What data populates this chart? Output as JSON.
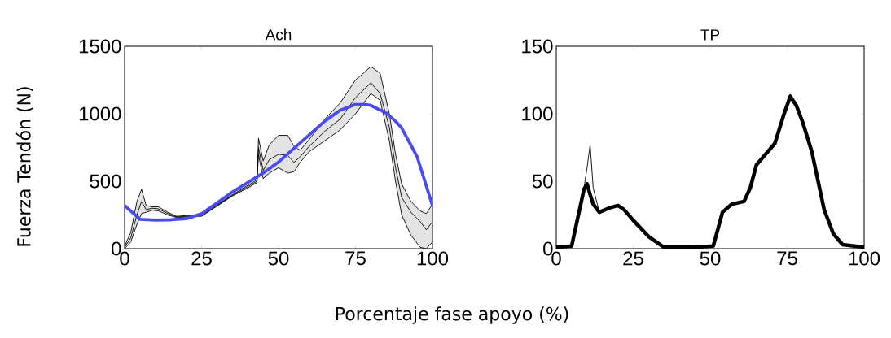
{
  "chart_data": [
    {
      "type": "line",
      "title": "Ach",
      "ylabel": "Fuerza Tendón (N)",
      "xlabel": "Porcentaje fase apoyo  (%)",
      "xlim": [
        0,
        100
      ],
      "ylim": [
        0,
        1500
      ],
      "xticks": [
        0,
        25,
        50,
        75,
        100
      ],
      "yticks": [
        0,
        500,
        1000,
        1500
      ],
      "grid": false,
      "legend": false,
      "series": [
        {
          "color": "#000000",
          "x": [
            0,
            2,
            4,
            5.5,
            7,
            9,
            11,
            14,
            17,
            20,
            25,
            30,
            35,
            40,
            43,
            43.5,
            45,
            47,
            50,
            53,
            55,
            57,
            60,
            65,
            70,
            75,
            80,
            83,
            86,
            88,
            90,
            93,
            96,
            98,
            100
          ],
          "values": [
            10,
            80,
            250,
            350,
            290,
            300,
            295,
            260,
            235,
            240,
            245,
            320,
            395,
            460,
            500,
            750,
            580,
            660,
            700,
            690,
            640,
            680,
            760,
            870,
            960,
            1120,
            1230,
            1150,
            900,
            600,
            380,
            270,
            200,
            140,
            200
          ],
          "upper": [
            20,
            120,
            350,
            440,
            320,
            310,
            310,
            270,
            240,
            245,
            250,
            325,
            400,
            470,
            510,
            820,
            650,
            770,
            840,
            840,
            760,
            730,
            810,
            960,
            1080,
            1250,
            1350,
            1300,
            1000,
            700,
            480,
            350,
            280,
            260,
            330
          ],
          "lower": [
            0,
            50,
            180,
            260,
            270,
            285,
            280,
            250,
            230,
            235,
            240,
            315,
            390,
            450,
            490,
            700,
            520,
            560,
            600,
            560,
            570,
            640,
            720,
            800,
            880,
            1000,
            1150,
            1100,
            800,
            500,
            250,
            100,
            10,
            0,
            50
          ]
        },
        {
          "color": "#000000",
          "x": [
            0,
            2,
            4,
            5.5,
            7,
            9,
            11,
            14,
            17,
            20,
            25,
            30,
            35,
            40,
            43,
            43.5,
            45,
            47,
            50,
            53,
            55,
            57,
            60,
            65,
            70,
            75,
            80,
            83,
            86,
            88,
            90,
            93,
            96,
            98,
            100
          ],
          "values": [
            20,
            120,
            350,
            440,
            320,
            310,
            310,
            270,
            240,
            245,
            250,
            325,
            400,
            470,
            510,
            820,
            650,
            770,
            840,
            840,
            760,
            730,
            810,
            960,
            1080,
            1250,
            1350,
            1300,
            1000,
            700,
            480,
            350,
            280,
            260,
            330
          ]
        },
        {
          "color": "#000000",
          "x": [
            0,
            2,
            4,
            5.5,
            7,
            9,
            11,
            14,
            17,
            20,
            25,
            30,
            35,
            40,
            43,
            43.5,
            45,
            47,
            50,
            53,
            55,
            57,
            60,
            65,
            70,
            75,
            80,
            83,
            86,
            88,
            90,
            93,
            96,
            98,
            100
          ],
          "values": [
            0,
            50,
            180,
            260,
            270,
            285,
            280,
            250,
            230,
            235,
            240,
            315,
            390,
            450,
            490,
            700,
            520,
            560,
            600,
            560,
            570,
            640,
            720,
            800,
            880,
            1000,
            1150,
            1100,
            800,
            500,
            250,
            100,
            10,
            0,
            50
          ]
        },
        {
          "color": "#4b4bf5",
          "x": [
            0,
            5,
            10,
            15,
            20,
            25,
            30,
            35,
            40,
            45,
            50,
            55,
            60,
            65,
            70,
            75,
            78,
            80,
            85,
            88,
            90,
            95,
            100
          ],
          "values": [
            320,
            218,
            212,
            214,
            222,
            258,
            339,
            420,
            490,
            561,
            642,
            743,
            844,
            945,
            1026,
            1070,
            1070,
            1062,
            1005,
            945,
            894,
            682,
            319
          ]
        }
      ]
    },
    {
      "type": "line",
      "title": "TP",
      "xlim": [
        0,
        100
      ],
      "ylim": [
        0,
        150
      ],
      "xticks": [
        0,
        25,
        50,
        75,
        100
      ],
      "yticks": [
        0,
        50,
        100,
        150
      ],
      "grid": false,
      "legend": false,
      "series": [
        {
          "color": "#000000",
          "x": [
            0,
            5,
            7,
            9,
            10,
            11,
            12,
            14,
            17,
            20,
            22,
            25,
            30,
            35,
            45,
            51,
            54,
            57,
            61,
            63,
            65,
            68,
            71,
            74,
            76,
            78,
            80,
            83,
            87,
            90,
            93,
            100
          ],
          "values": [
            1,
            2,
            23,
            44,
            48,
            40,
            33,
            27,
            30,
            32,
            29,
            21,
            9,
            1,
            1,
            2,
            27,
            33,
            35,
            45,
            62,
            70,
            78,
            100,
            113,
            106,
            94,
            72,
            29,
            11,
            3,
            1
          ]
        },
        {
          "color": "#000000",
          "x": [
            5,
            8,
            10,
            11,
            12,
            14
          ],
          "values": [
            2,
            30,
            60,
            77,
            45,
            27
          ]
        }
      ]
    }
  ]
}
